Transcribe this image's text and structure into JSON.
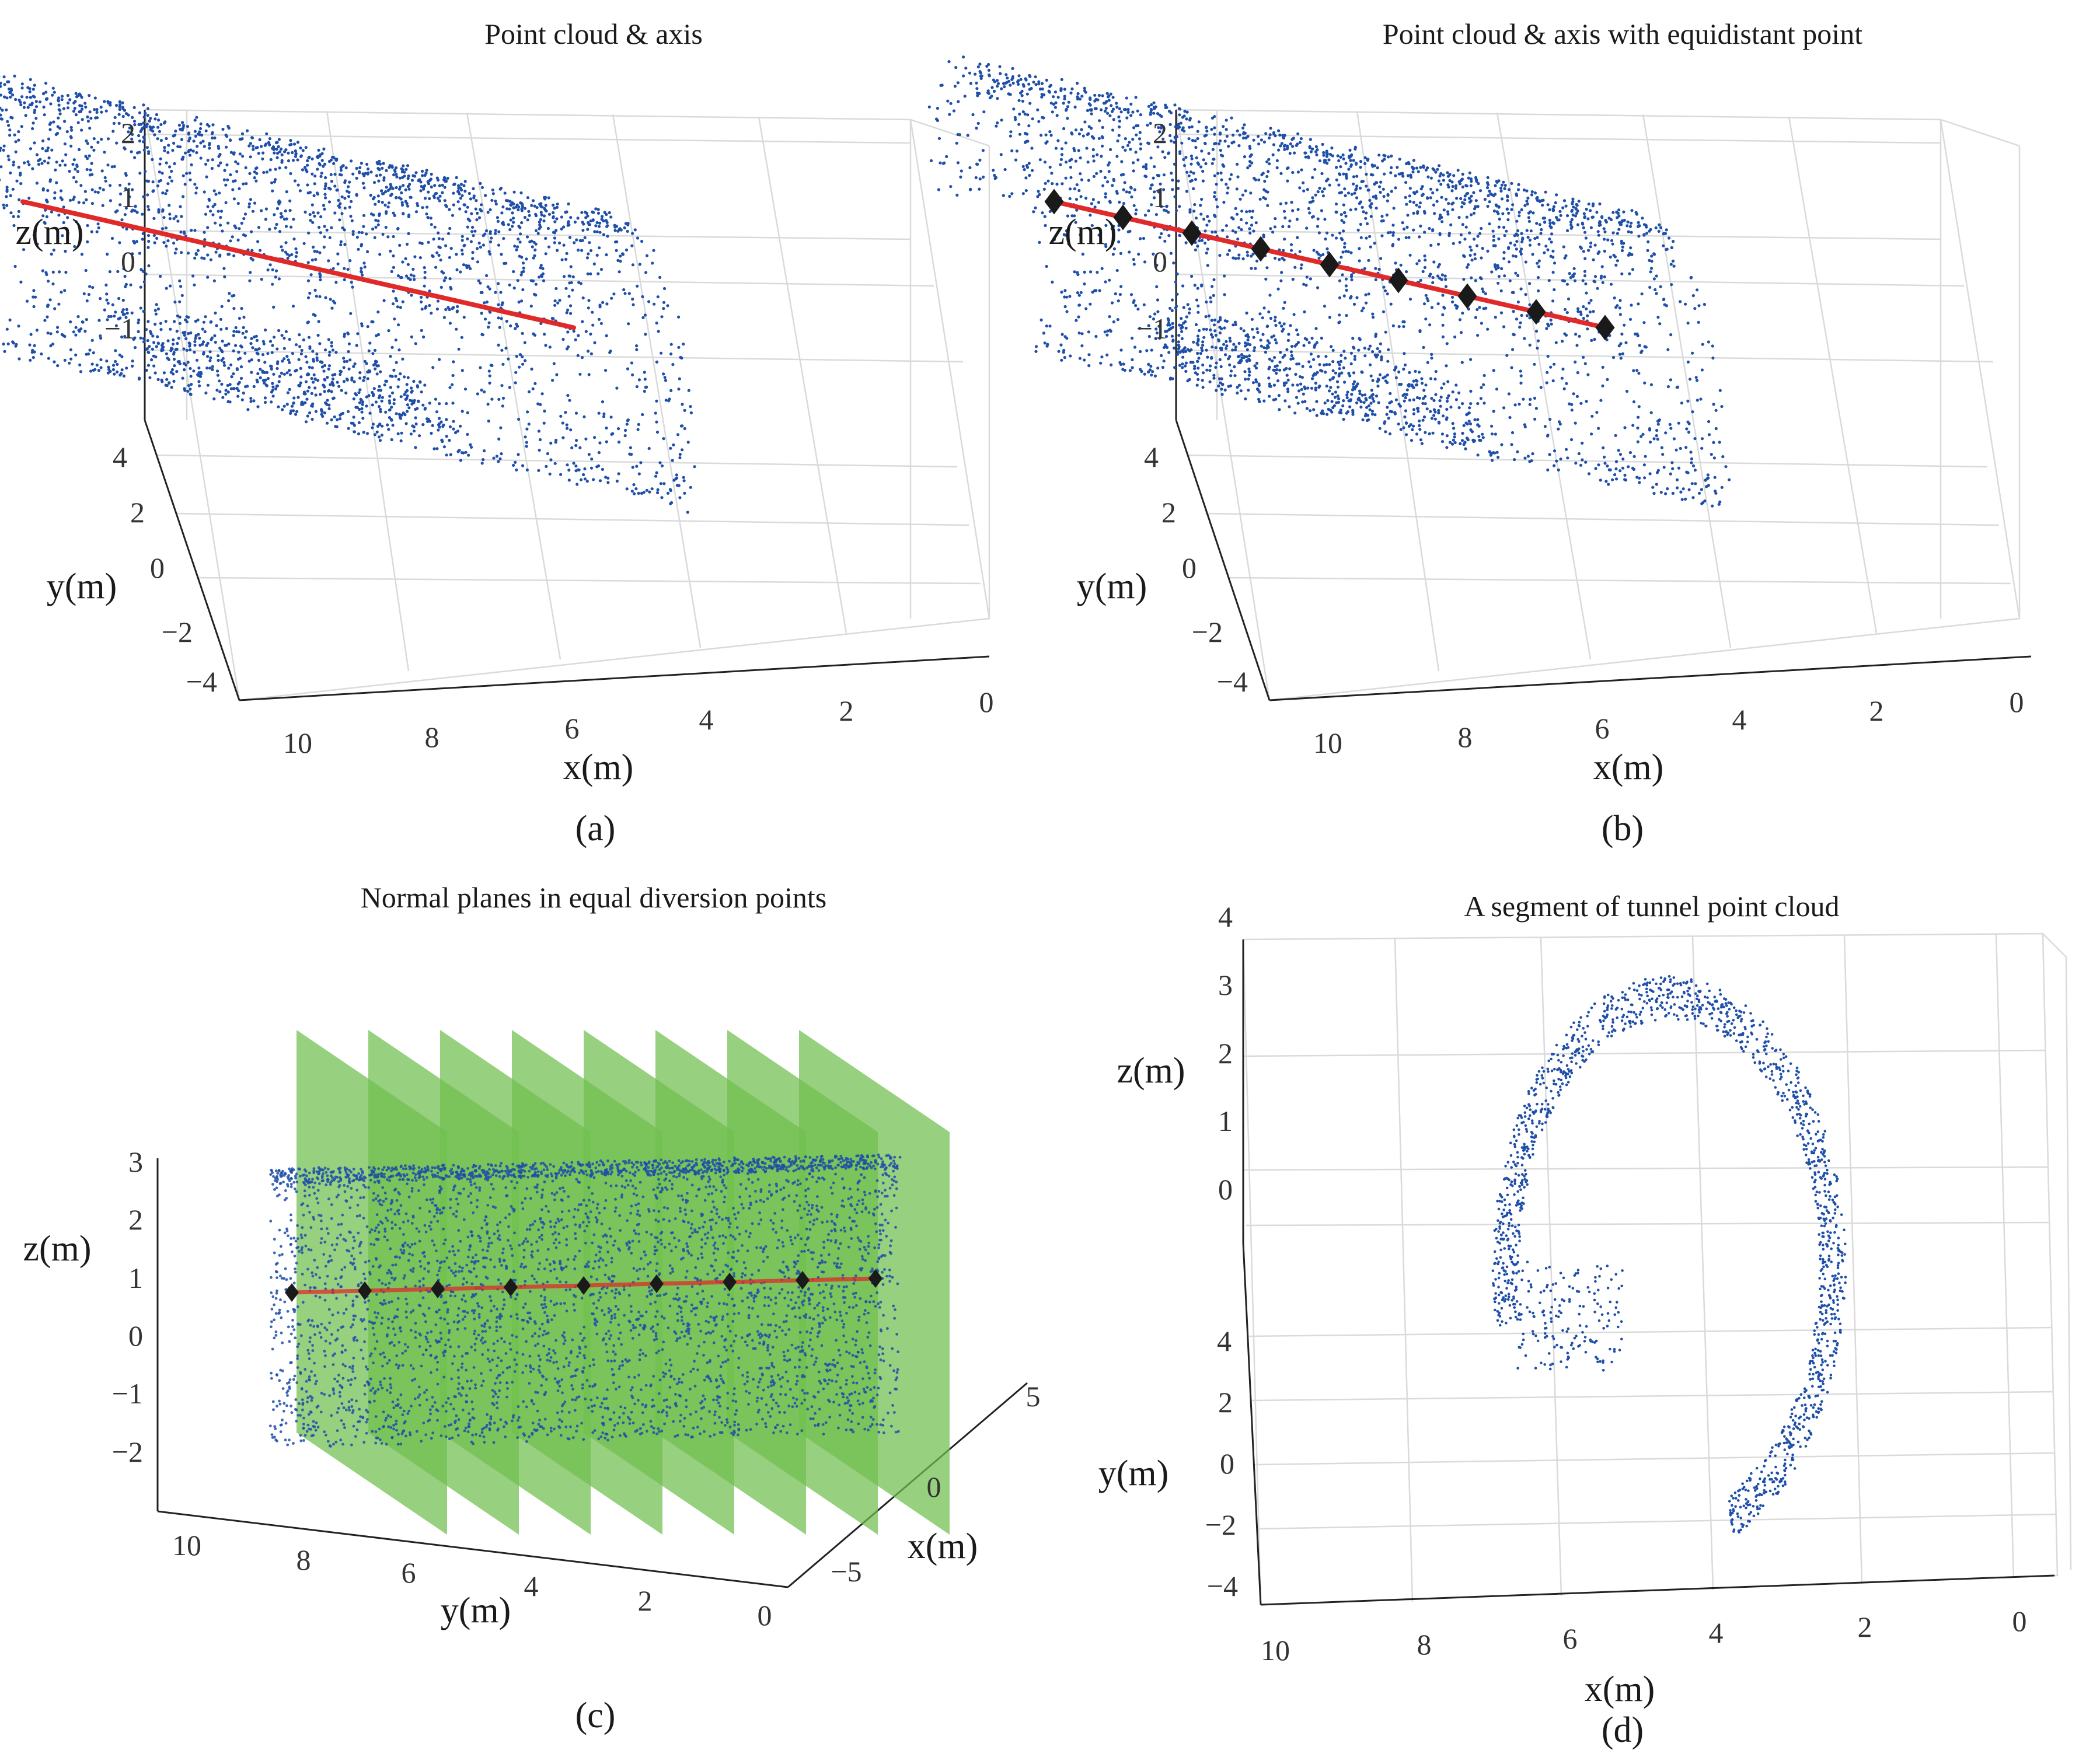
{
  "colors": {
    "points": "#1f4fa8",
    "axis_line": "#e02a2a",
    "marker": "#1a1a1a",
    "plane": "#6fbf4e",
    "grid": "#dadada"
  },
  "chart_data": [
    {
      "panel_label": "(a)",
      "type": "scatter3d",
      "title": "Point cloud & axis",
      "xlabel": "x(m)",
      "ylabel": "y(m)",
      "zlabel": "z(m)",
      "xticks": [
        "10",
        "8",
        "6",
        "4",
        "2",
        "0"
      ],
      "yticks": [
        "4",
        "2",
        "0",
        "−2",
        "−4"
      ],
      "zticks": [
        "2",
        "1",
        "0",
        "−1"
      ],
      "xlim": [
        0,
        10
      ],
      "ylim": [
        -4,
        4
      ],
      "zlim": [
        -1.5,
        2.5
      ],
      "series": [
        {
          "name": "tunnel point cloud",
          "kind": "points",
          "radius": 2
        },
        {
          "name": "axis",
          "kind": "line",
          "start": [
            9.5,
            0,
            0.3
          ],
          "end": [
            1.5,
            0,
            0.3
          ]
        }
      ]
    },
    {
      "panel_label": "(b)",
      "type": "scatter3d",
      "title": "Point cloud & axis with equidistant point",
      "xlabel": "x(m)",
      "ylabel": "y(m)",
      "zlabel": "z(m)",
      "xticks": [
        "10",
        "8",
        "6",
        "4",
        "2",
        "0"
      ],
      "yticks": [
        "4",
        "2",
        "0",
        "−2",
        "−4"
      ],
      "zticks": [
        "2",
        "1",
        "0",
        "−1"
      ],
      "xlim": [
        0,
        10
      ],
      "ylim": [
        -4,
        4
      ],
      "zlim": [
        -1.5,
        2.5
      ],
      "series": [
        {
          "name": "tunnel point cloud",
          "kind": "points",
          "radius": 2
        },
        {
          "name": "axis",
          "kind": "line",
          "start": [
            9.5,
            0,
            0.3
          ],
          "end": [
            1.5,
            0,
            0.3
          ]
        },
        {
          "name": "equidistant points",
          "kind": "markers",
          "count": 9,
          "start": [
            9.5,
            0,
            0.3
          ],
          "end": [
            1.5,
            0,
            0.3
          ]
        }
      ]
    },
    {
      "panel_label": "(c)",
      "type": "scatter3d",
      "title": "Normal planes in equal diversion points",
      "xlabel": "x(m)",
      "ylabel": "y(m)",
      "zlabel": "z(m)",
      "xticks": [
        "5",
        "0",
        "−5"
      ],
      "yticks": [
        "10",
        "8",
        "6",
        "4",
        "2",
        "0"
      ],
      "zticks": [
        "3",
        "2",
        "1",
        "0",
        "−1",
        "−2"
      ],
      "xlim": [
        -5,
        5
      ],
      "ylim": [
        0,
        10
      ],
      "zlim": [
        -2,
        3
      ],
      "series": [
        {
          "name": "tunnel point cloud",
          "kind": "points",
          "radius": 2.5
        },
        {
          "name": "axis",
          "kind": "line",
          "start": [
            0,
            8,
            1
          ],
          "end": [
            0,
            0,
            1
          ]
        },
        {
          "name": "equidistant points",
          "kind": "markers",
          "count": 9,
          "start": [
            0,
            8,
            1
          ],
          "end": [
            0,
            0,
            1
          ]
        },
        {
          "name": "normal planes",
          "kind": "planes",
          "count": 8
        }
      ]
    },
    {
      "panel_label": "(d)",
      "type": "scatter3d",
      "title": "A segment of tunnel point cloud",
      "xlabel": "x(m)",
      "ylabel": "y(m)",
      "zlabel": "z(m)",
      "xticks": [
        "10",
        "8",
        "6",
        "4",
        "2",
        "0"
      ],
      "yticks": [
        "4",
        "2",
        "0",
        "−2",
        "−4"
      ],
      "zticks": [
        "4",
        "3",
        "2",
        "1",
        "0"
      ],
      "xlim": [
        0,
        10
      ],
      "ylim": [
        -4,
        4
      ],
      "zlim": [
        0,
        4
      ],
      "series": [
        {
          "name": "tunnel segment",
          "kind": "points",
          "radius": 2.2
        }
      ]
    }
  ]
}
